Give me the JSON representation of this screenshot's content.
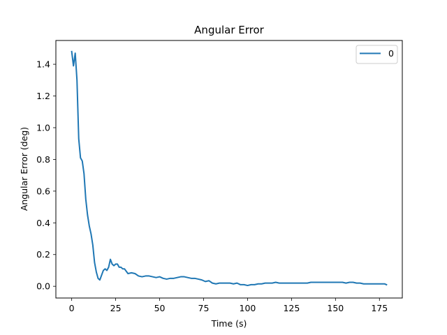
{
  "chart_data": {
    "type": "line",
    "title": "Angular Error",
    "xlabel": "Time (s)",
    "ylabel": "Angular Error (deg)",
    "xlim": [
      -9,
      188
    ],
    "ylim": [
      -0.074,
      1.55
    ],
    "xticks": [
      0,
      25,
      50,
      75,
      100,
      125,
      150,
      175
    ],
    "yticks": [
      0.0,
      0.2,
      0.4,
      0.6,
      0.8,
      1.0,
      1.2,
      1.4
    ],
    "ytick_labels": [
      "0.0",
      "0.2",
      "0.4",
      "0.6",
      "0.8",
      "1.0",
      "1.2",
      "1.4"
    ],
    "grid": false,
    "legend": {
      "position": "top-right",
      "entries": [
        "0"
      ]
    },
    "series": [
      {
        "name": "0",
        "color": "#1f77b4",
        "x": [
          0,
          1,
          2,
          3,
          4,
          5,
          6,
          7,
          8,
          9,
          10,
          11,
          12,
          13,
          14,
          15,
          16,
          17,
          18,
          19,
          20,
          21,
          22,
          23,
          24,
          25,
          26,
          27,
          28,
          29,
          30,
          32,
          34,
          36,
          38,
          40,
          42,
          44,
          46,
          48,
          50,
          52,
          54,
          56,
          58,
          60,
          62,
          64,
          66,
          68,
          70,
          72,
          74,
          76,
          78,
          80,
          82,
          84,
          86,
          88,
          90,
          92,
          94,
          96,
          98,
          100,
          102,
          104,
          106,
          108,
          110,
          112,
          114,
          116,
          118,
          120,
          122,
          124,
          126,
          128,
          130,
          132,
          134,
          136,
          138,
          140,
          142,
          144,
          146,
          148,
          150,
          152,
          154,
          156,
          158,
          160,
          162,
          164,
          166,
          168,
          170,
          172,
          174,
          176,
          178,
          179
        ],
        "y": [
          1.48,
          1.39,
          1.47,
          1.3,
          0.93,
          0.81,
          0.79,
          0.71,
          0.55,
          0.45,
          0.38,
          0.33,
          0.26,
          0.15,
          0.09,
          0.05,
          0.04,
          0.07,
          0.1,
          0.11,
          0.1,
          0.12,
          0.17,
          0.14,
          0.13,
          0.14,
          0.14,
          0.12,
          0.12,
          0.11,
          0.11,
          0.08,
          0.085,
          0.08,
          0.065,
          0.06,
          0.065,
          0.065,
          0.06,
          0.055,
          0.06,
          0.05,
          0.045,
          0.05,
          0.05,
          0.055,
          0.06,
          0.06,
          0.055,
          0.05,
          0.05,
          0.045,
          0.04,
          0.03,
          0.035,
          0.02,
          0.015,
          0.02,
          0.02,
          0.02,
          0.02,
          0.015,
          0.02,
          0.01,
          0.01,
          0.005,
          0.01,
          0.01,
          0.015,
          0.015,
          0.02,
          0.02,
          0.02,
          0.025,
          0.02,
          0.02,
          0.02,
          0.02,
          0.02,
          0.02,
          0.02,
          0.02,
          0.02,
          0.025,
          0.025,
          0.025,
          0.025,
          0.025,
          0.025,
          0.025,
          0.025,
          0.025,
          0.025,
          0.02,
          0.025,
          0.025,
          0.02,
          0.02,
          0.015,
          0.015,
          0.015,
          0.015,
          0.015,
          0.015,
          0.015,
          0.01
        ]
      }
    ]
  }
}
